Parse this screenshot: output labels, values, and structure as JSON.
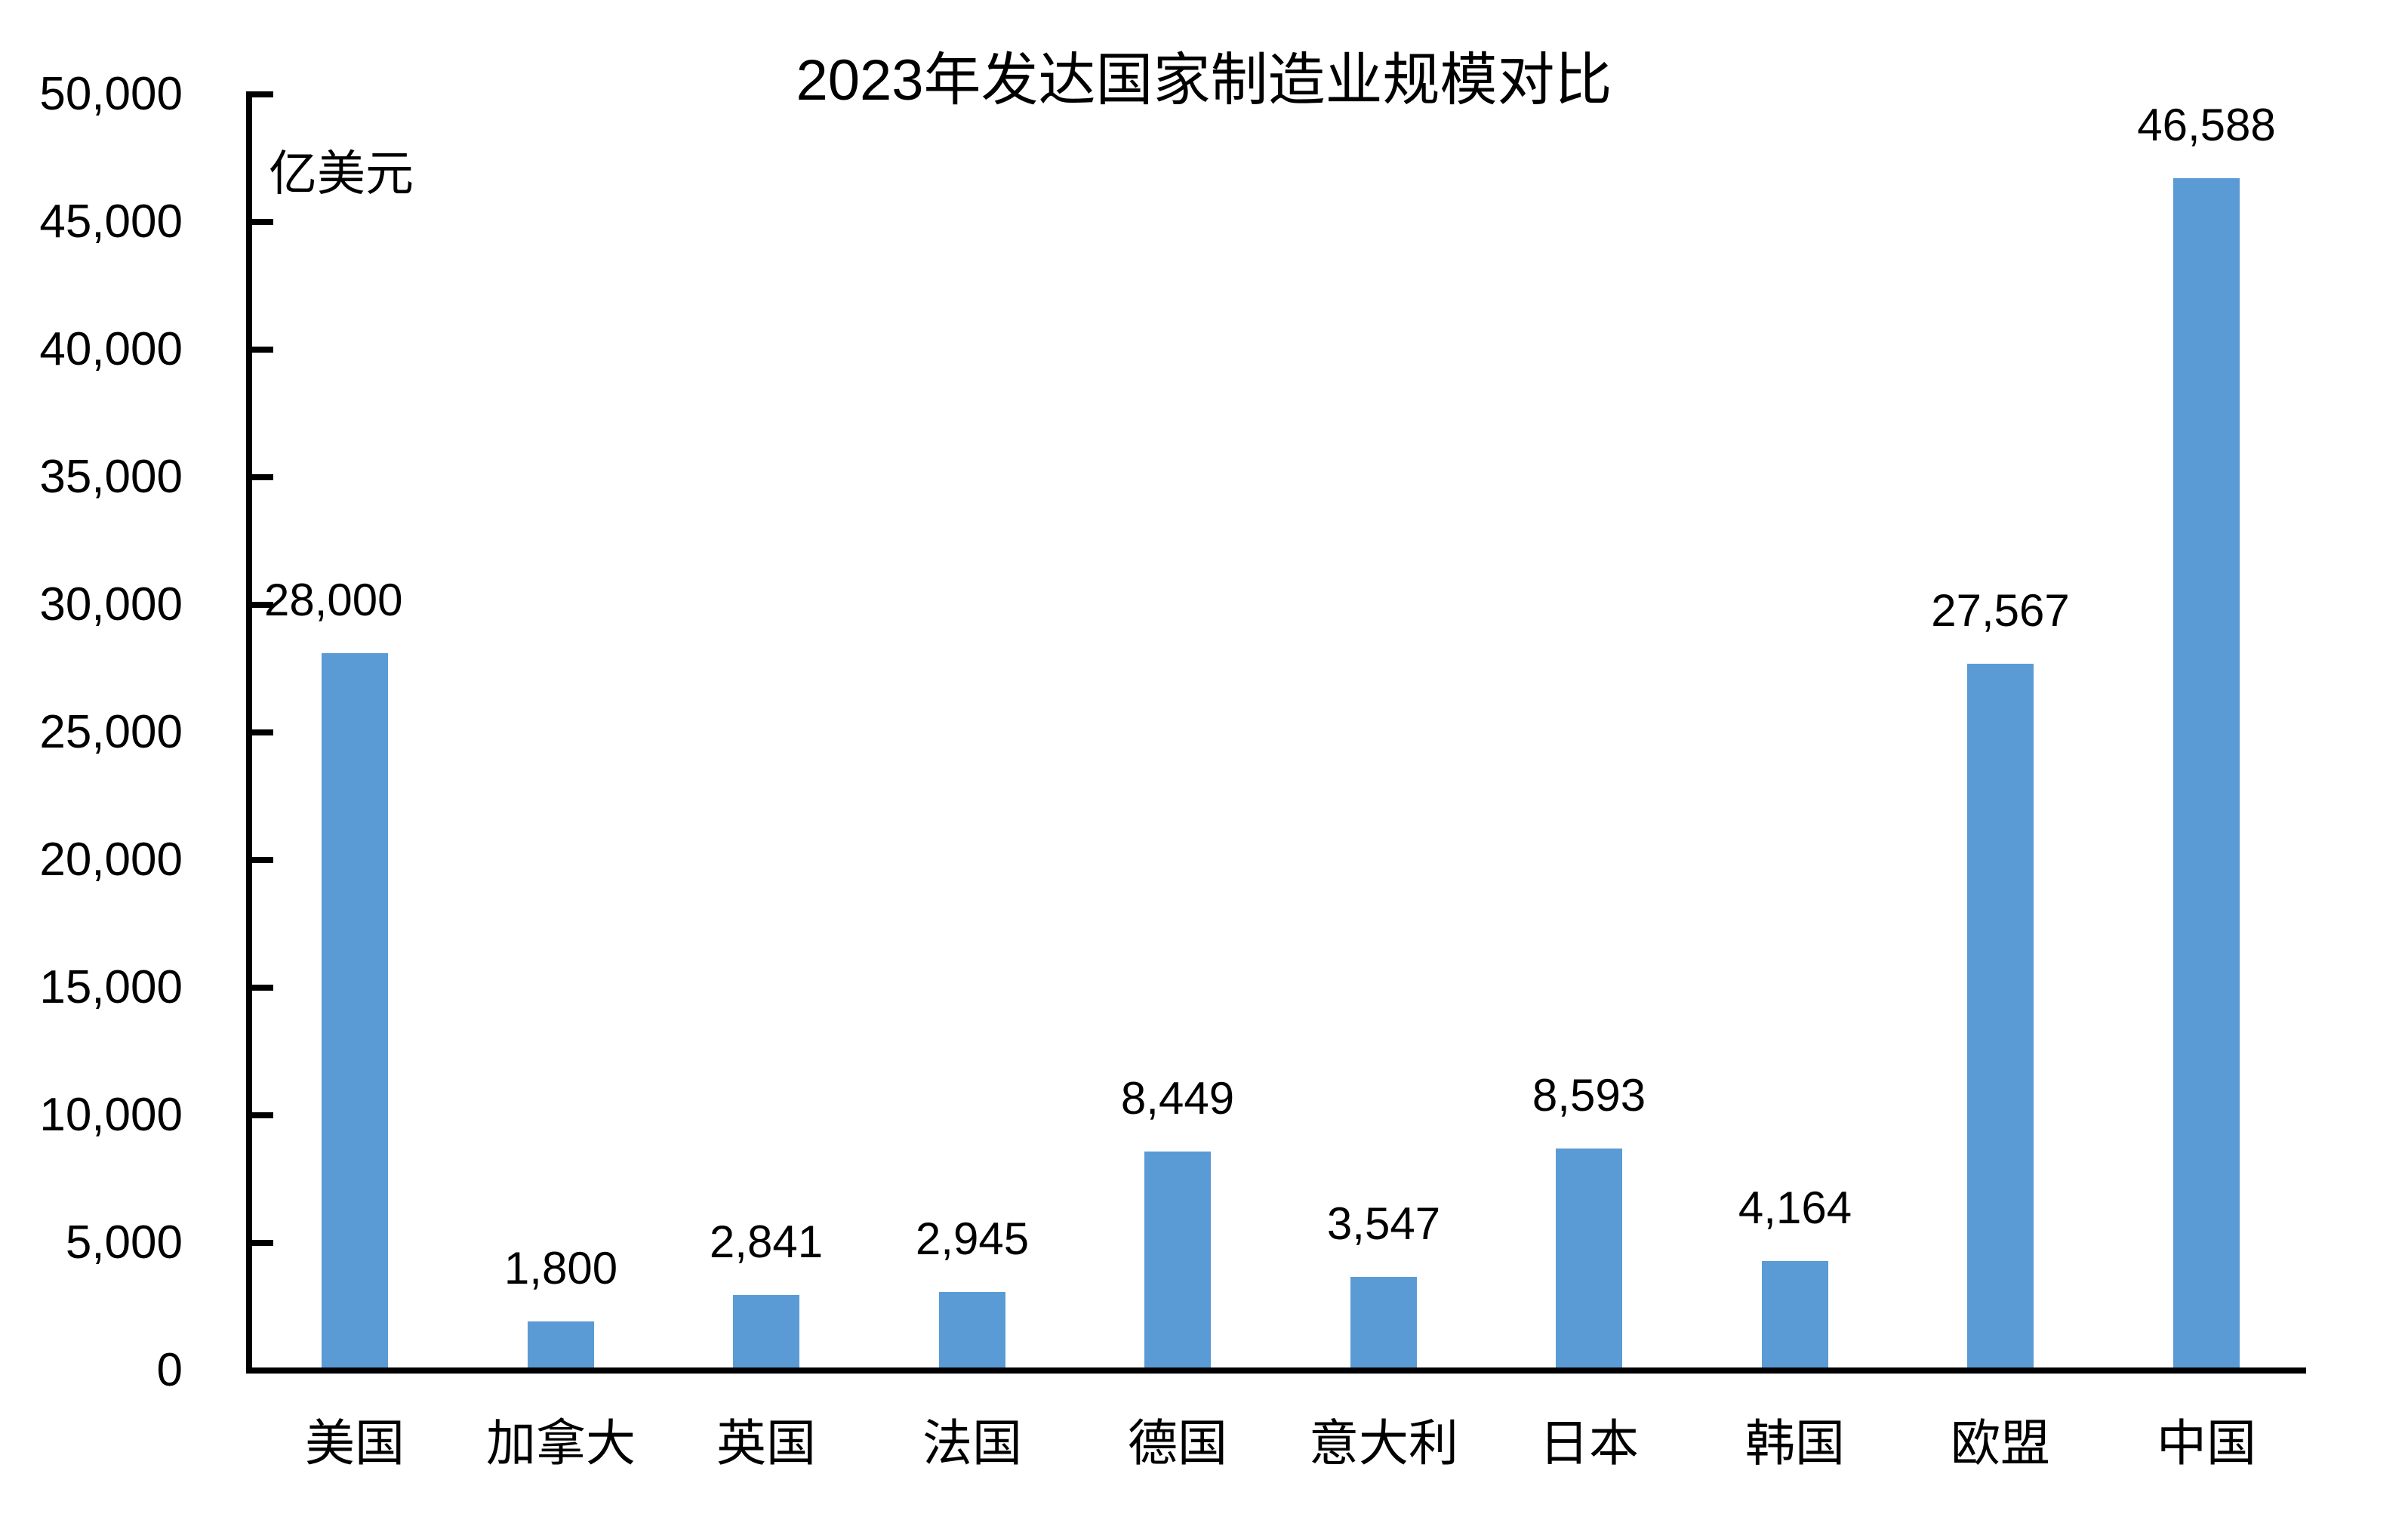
{
  "chart_data": {
    "type": "bar",
    "title": "2023年发达国家制造业规模对比",
    "y_unit_label": "亿美元",
    "categories": [
      "美国",
      "加拿大",
      "英国",
      "法国",
      "德国",
      "意大利",
      "日本",
      "韩国",
      "欧盟",
      "中国"
    ],
    "values": [
      28000,
      1800,
      2841,
      2945,
      8449,
      3547,
      8593,
      4164,
      27567,
      46588
    ],
    "data_labels": [
      "28,000",
      "1,800",
      "2,841",
      "2,945",
      "8,449",
      "3,547",
      "8,593",
      "4,164",
      "27,567",
      "46,588"
    ],
    "xlabel": "",
    "ylabel": "亿美元",
    "ylim": [
      0,
      50000
    ],
    "ytick_step": 5000,
    "ytick_labels": [
      "0",
      "5,000",
      "10,000",
      "15,000",
      "20,000",
      "25,000",
      "30,000",
      "35,000",
      "40,000",
      "45,000",
      "50,000"
    ],
    "bar_color": "#5B9BD5",
    "axis_color": "#000000",
    "text_color": "#000000",
    "background_color": "#FFFFFF",
    "grid": false,
    "legend": false,
    "tick_direction": "inside",
    "first_data_label_at_axis": true
  }
}
